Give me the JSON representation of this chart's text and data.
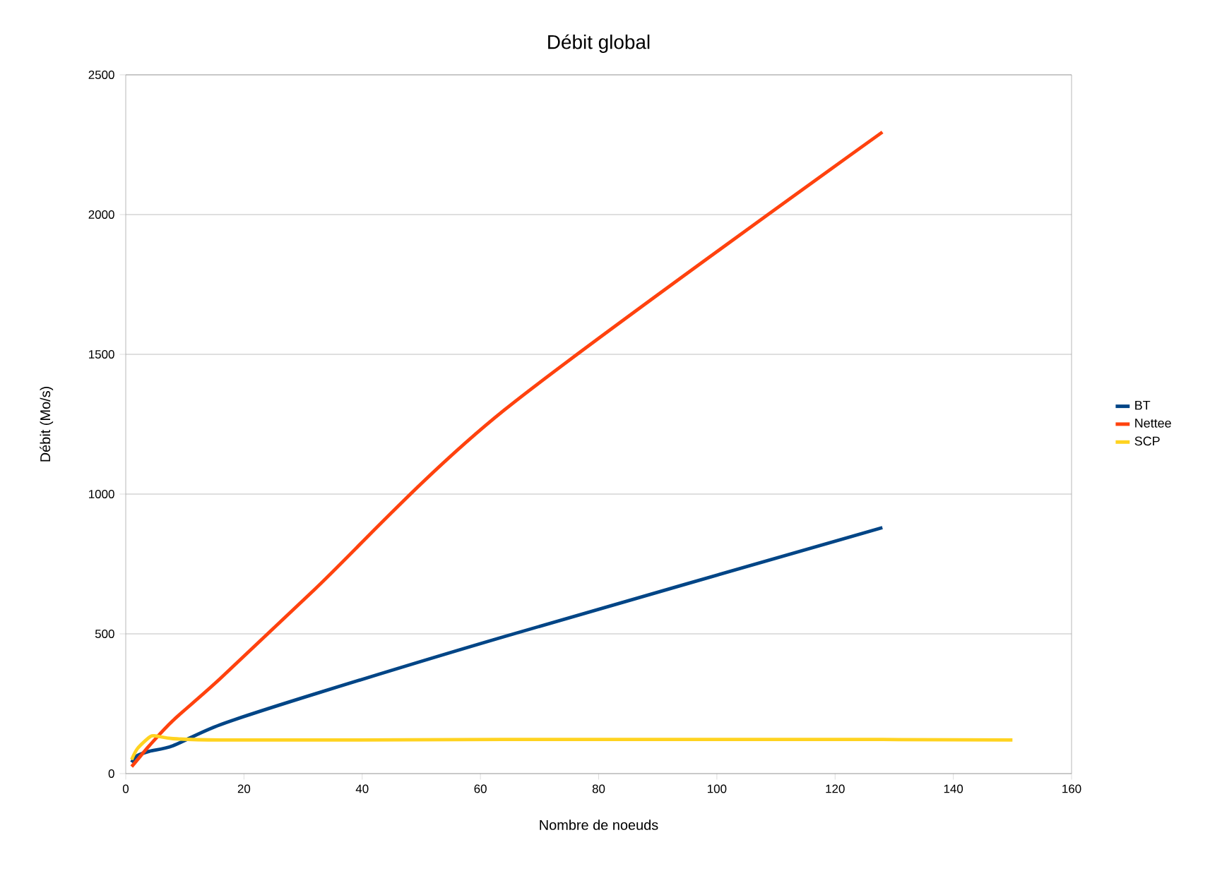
{
  "chart_data": {
    "type": "line",
    "title": "Débit global",
    "xlabel": "Nombre de noeuds",
    "ylabel": "Débit (Mo/s)",
    "series": [
      {
        "name": "BT",
        "color": "#004586",
        "x": [
          1,
          2,
          4,
          8,
          16,
          32,
          64,
          128
        ],
        "values": [
          40,
          65,
          80,
          100,
          175,
          285,
          490,
          880
        ]
      },
      {
        "name": "Nettee",
        "color": "#ff420e",
        "x": [
          1,
          2,
          4,
          8,
          16,
          32,
          64,
          128
        ],
        "values": [
          25,
          50,
          100,
          190,
          340,
          660,
          1300,
          2295
        ]
      },
      {
        "name": "SCP",
        "color": "#ffd320",
        "x": [
          1,
          2,
          4,
          5,
          8,
          16,
          32,
          64,
          128,
          150
        ],
        "values": [
          50,
          90,
          130,
          135,
          125,
          120,
          120,
          122,
          122,
          120
        ]
      }
    ],
    "xlim": [
      0,
      160
    ],
    "ylim": [
      0,
      2500
    ],
    "xticks": [
      0,
      20,
      40,
      60,
      80,
      100,
      120,
      140,
      160
    ],
    "yticks": [
      0,
      500,
      1000,
      1500,
      2000,
      2500
    ],
    "grid": "y",
    "legend": "right",
    "marker": "none",
    "line_style": "solid"
  }
}
